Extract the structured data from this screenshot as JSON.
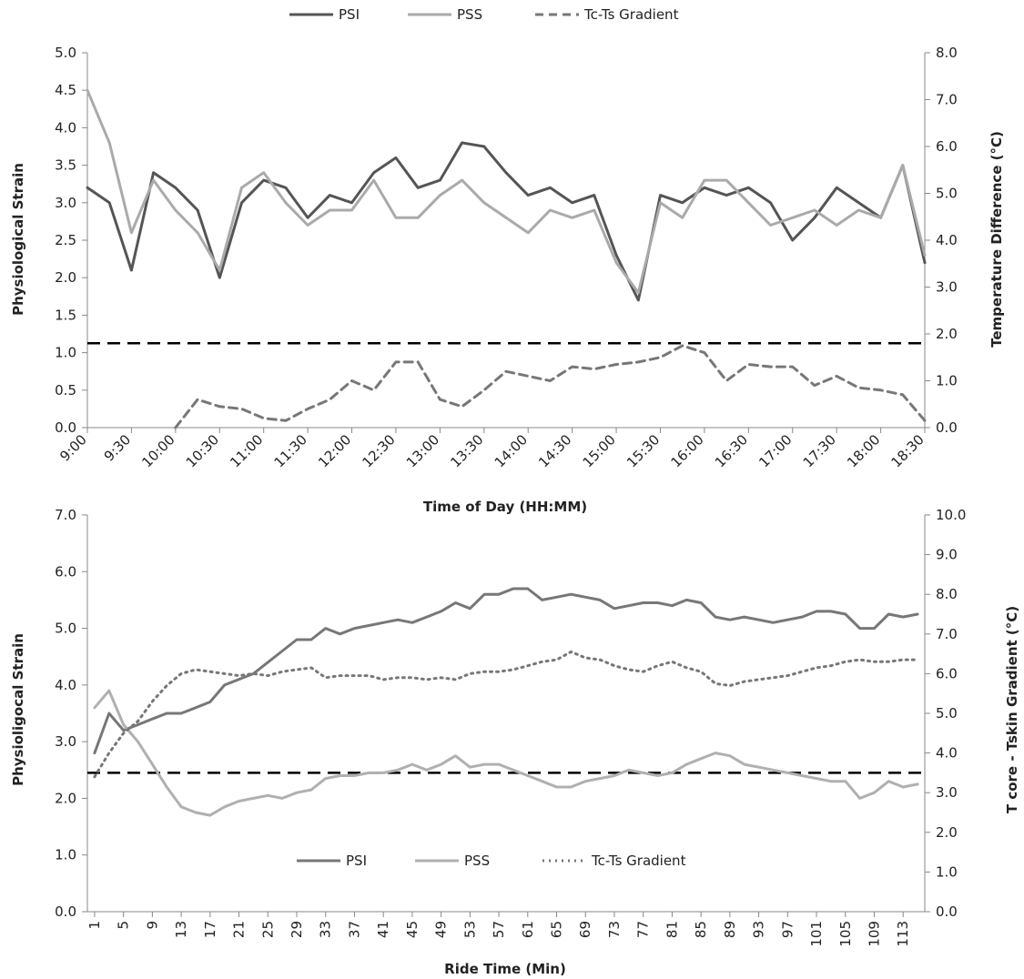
{
  "chart_data": [
    {
      "type": "line",
      "title": "",
      "xlabel": "Time of Day (HH:MM)",
      "ylabel": "Physiological Strain",
      "y2label": "Temperature Difference (°C)",
      "ylim": [
        0,
        5
      ],
      "y2lim": [
        0,
        8
      ],
      "y_ticks": [
        "0.0",
        "0.5",
        "1.0",
        "1.5",
        "2.0",
        "2.5",
        "3.0",
        "3.5",
        "4.0",
        "4.5",
        "5.0"
      ],
      "y2_ticks": [
        "0.0",
        "1.0",
        "2.0",
        "3.0",
        "4.0",
        "5.0",
        "6.0",
        "7.0",
        "8.0"
      ],
      "x_ticks": [
        "9:00",
        "9:30",
        "10:00",
        "10:30",
        "11:00",
        "11:30",
        "12:00",
        "12:30",
        "13:00",
        "13:30",
        "14:00",
        "14:30",
        "15:00",
        "15:30",
        "16:00",
        "16:30",
        "17:00",
        "17:30",
        "18:00",
        "18:30"
      ],
      "x_minutes": [
        0,
        15,
        30,
        45,
        60,
        75,
        90,
        105,
        120,
        135,
        150,
        165,
        180,
        195,
        210,
        225,
        240,
        255,
        270,
        285,
        300,
        315,
        330,
        345,
        360,
        375,
        390,
        405,
        420,
        435,
        450,
        465,
        480,
        495,
        510,
        525,
        540,
        555,
        570
      ],
      "legend_position": "top",
      "threshold_y2": 1.8,
      "series": [
        {
          "name": "PSI",
          "axis": "left",
          "color": "#555555",
          "dash": "solid",
          "values": [
            3.2,
            3.0,
            2.1,
            3.4,
            3.2,
            2.9,
            2.0,
            3.0,
            3.3,
            3.2,
            2.8,
            3.1,
            3.0,
            3.4,
            3.6,
            3.2,
            3.3,
            3.8,
            3.75,
            3.4,
            3.1,
            3.2,
            3.0,
            3.1,
            2.3,
            1.7,
            3.1,
            3.0,
            3.2,
            3.1,
            3.2,
            3.0,
            2.5,
            2.8,
            3.2,
            3.0,
            2.8,
            3.5,
            2.2
          ]
        },
        {
          "name": "PSS",
          "axis": "left",
          "color": "#aaaaaa",
          "dash": "solid",
          "values": [
            4.5,
            3.8,
            2.6,
            3.3,
            2.9,
            2.6,
            2.1,
            3.2,
            3.4,
            3.0,
            2.7,
            2.9,
            2.9,
            3.3,
            2.8,
            2.8,
            3.1,
            3.3,
            3.0,
            2.8,
            2.6,
            2.9,
            2.8,
            2.9,
            2.2,
            1.8,
            3.0,
            2.8,
            3.3,
            3.3,
            3.0,
            2.7,
            2.8,
            2.9,
            2.7,
            2.9,
            2.8,
            3.5,
            2.3
          ]
        },
        {
          "name": "Tc-Ts Gradient",
          "axis": "right",
          "color": "#777777",
          "dash": "dashed",
          "values": [
            null,
            null,
            0.0,
            null,
            0.0,
            0.6,
            0.45,
            0.4,
            0.2,
            0.15,
            0.4,
            0.6,
            1.0,
            0.8,
            1.4,
            1.4,
            0.6,
            0.45,
            0.8,
            1.2,
            1.1,
            1.0,
            1.3,
            1.25,
            1.35,
            1.4,
            1.5,
            1.75,
            1.6,
            1.0,
            1.35,
            1.3,
            1.3,
            0.9,
            1.1,
            0.85,
            0.8,
            0.7,
            0.15
          ]
        }
      ]
    },
    {
      "type": "line",
      "title": "",
      "xlabel": "Ride Time (Min)",
      "ylabel": "Physioligocal Strain",
      "y2label": "T core - Tskin Gradient (°C)",
      "ylim": [
        0,
        7
      ],
      "y2lim": [
        0,
        10
      ],
      "y_ticks": [
        "0.0",
        "1.0",
        "2.0",
        "3.0",
        "4.0",
        "5.0",
        "6.0",
        "7.0"
      ],
      "y2_ticks": [
        "0.0",
        "1.0",
        "2.0",
        "3.0",
        "4.0",
        "5.0",
        "6.0",
        "7.0",
        "8.0",
        "9.0",
        "10.0"
      ],
      "x_ticks": [
        "1",
        "5",
        "9",
        "13",
        "17",
        "21",
        "25",
        "29",
        "33",
        "37",
        "41",
        "45",
        "49",
        "53",
        "57",
        "61",
        "65",
        "69",
        "73",
        "77",
        "81",
        "85",
        "89",
        "93",
        "97",
        "101",
        "105",
        "109",
        "113"
      ],
      "x": [
        1,
        3,
        5,
        7,
        9,
        11,
        13,
        15,
        17,
        19,
        21,
        23,
        25,
        27,
        29,
        31,
        33,
        35,
        37,
        39,
        41,
        43,
        45,
        47,
        49,
        51,
        53,
        55,
        57,
        59,
        61,
        63,
        65,
        67,
        69,
        71,
        73,
        75,
        77,
        79,
        81,
        83,
        85,
        87,
        89,
        91,
        93,
        95,
        97,
        99,
        101,
        103,
        105,
        107,
        109,
        111,
        113,
        115
      ],
      "legend_position": "bottom-center",
      "threshold_y": 2.45,
      "series": [
        {
          "name": "PSI",
          "axis": "left",
          "color": "#777777",
          "dash": "solid",
          "values": [
            2.8,
            3.5,
            3.2,
            3.3,
            3.4,
            3.5,
            3.5,
            3.6,
            3.7,
            4.0,
            4.1,
            4.2,
            4.4,
            4.6,
            4.8,
            4.8,
            5.0,
            4.9,
            5.0,
            5.05,
            5.1,
            5.15,
            5.1,
            5.2,
            5.3,
            5.45,
            5.35,
            5.6,
            5.6,
            5.7,
            5.7,
            5.5,
            5.55,
            5.6,
            5.55,
            5.5,
            5.35,
            5.4,
            5.45,
            5.45,
            5.4,
            5.5,
            5.45,
            5.2,
            5.15,
            5.2,
            5.15,
            5.1,
            5.15,
            5.2,
            5.3,
            5.3,
            5.25,
            5.0,
            5.0,
            5.25,
            5.2,
            5.25
          ]
        },
        {
          "name": "PSS",
          "axis": "left",
          "color": "#b0b0b0",
          "dash": "solid",
          "values": [
            3.6,
            3.9,
            3.3,
            3.0,
            2.6,
            2.2,
            1.85,
            1.75,
            1.7,
            1.85,
            1.95,
            2.0,
            2.05,
            2.0,
            2.1,
            2.15,
            2.35,
            2.4,
            2.4,
            2.45,
            2.45,
            2.5,
            2.6,
            2.5,
            2.6,
            2.75,
            2.55,
            2.6,
            2.6,
            2.5,
            2.4,
            2.3,
            2.2,
            2.2,
            2.3,
            2.35,
            2.4,
            2.5,
            2.45,
            2.4,
            2.45,
            2.6,
            2.7,
            2.8,
            2.75,
            2.6,
            2.55,
            2.5,
            2.45,
            2.4,
            2.35,
            2.3,
            2.3,
            2.0,
            2.1,
            2.3,
            2.2,
            2.25
          ]
        },
        {
          "name": "Tc-Ts Gradient",
          "axis": "right",
          "color": "#777777",
          "dash": "dotted",
          "values": [
            3.4,
            4.0,
            4.5,
            4.8,
            5.3,
            5.7,
            6.0,
            6.1,
            6.05,
            6.0,
            5.95,
            6.0,
            5.95,
            6.05,
            6.1,
            6.15,
            5.9,
            5.95,
            5.95,
            5.95,
            5.85,
            5.9,
            5.9,
            5.85,
            5.9,
            5.85,
            6.0,
            6.05,
            6.05,
            6.1,
            6.2,
            6.3,
            6.35,
            6.55,
            6.4,
            6.35,
            6.2,
            6.1,
            6.05,
            6.2,
            6.3,
            6.15,
            6.05,
            5.75,
            5.7,
            5.8,
            5.85,
            5.9,
            5.95,
            6.05,
            6.15,
            6.2,
            6.3,
            6.35,
            6.3,
            6.3,
            6.35,
            6.35
          ]
        }
      ]
    }
  ]
}
